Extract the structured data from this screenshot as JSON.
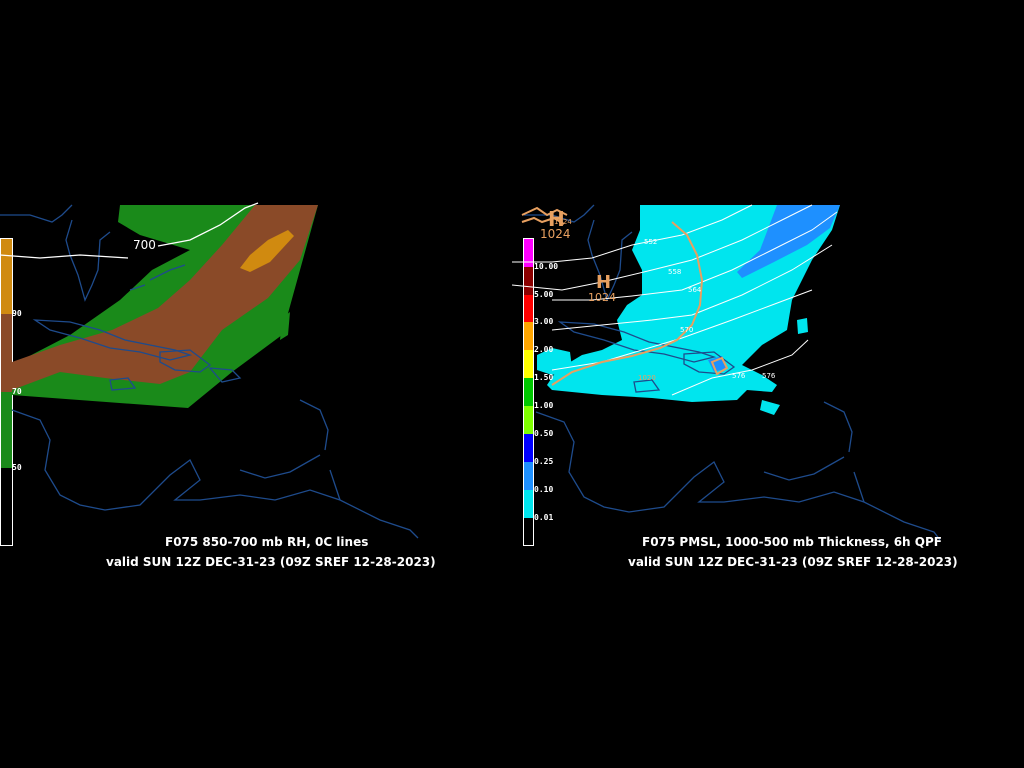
{
  "left_panel": {
    "title": "F075 850-700 mb RH, 0C lines",
    "valid": "valid SUN 12Z DEC-31-23 (09Z SREF 12-28-2023)",
    "contour_label": "700",
    "colorbar_ticks": [
      "90",
      "70",
      "50"
    ],
    "colorbar_colors": [
      "#d08a10",
      "#8a4a28",
      "#1a8a1a",
      "#000000"
    ]
  },
  "right_panel": {
    "title": "F075 PMSL, 1000-500 mb Thickness, 6h QPF",
    "valid": "valid SUN 12Z DEC-31-23 (09Z SREF 12-28-2023)",
    "high_labels": [
      {
        "symbol": "H",
        "value": "1024"
      },
      {
        "symbol": "H",
        "value": "1024"
      }
    ],
    "thickness_labels": [
      "552",
      "558",
      "564",
      "570",
      "576",
      "576"
    ],
    "isobar_small_labels": [
      "1024",
      "1020"
    ],
    "colorbar_ticks": [
      "10.00",
      "5.00",
      "3.00",
      "2.00",
      "1.50",
      "1.00",
      "0.50",
      "0.25",
      "0.10",
      "0.01"
    ],
    "colorbar_colors": [
      "#ff00ff",
      "#8b0000",
      "#ff0000",
      "#ffa500",
      "#ffff00",
      "#00c800",
      "#7fff00",
      "#0000ff",
      "#1e90ff",
      "#00e5ee",
      "#000000"
    ]
  },
  "colors": {
    "background": "#000000",
    "coastline": "#1e4b8c",
    "rh_green": "#1a8a1a",
    "rh_brown": "#8a4a28",
    "rh_orange": "#d08a10",
    "qpf_cyan": "#00e5ee",
    "qpf_blue": "#1e90ff",
    "isobar": "#e8a060"
  }
}
